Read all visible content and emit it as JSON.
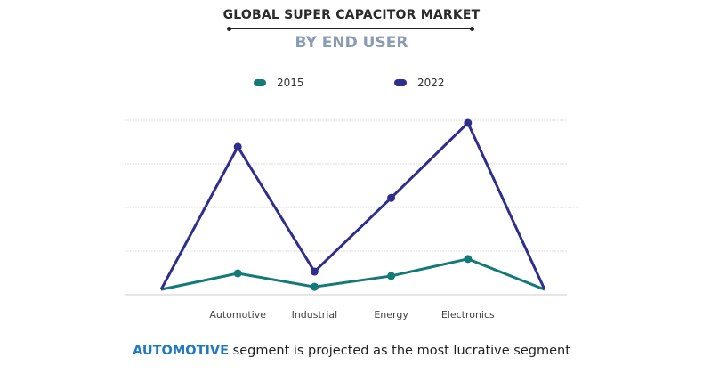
{
  "chart_data": {
    "type": "line",
    "title": "GLOBAL SUPER CAPACITOR MARKET",
    "subtitle": "BY END USER",
    "categories": [
      "",
      "Automotive",
      "Industrial",
      "Energy",
      "Electronics",
      ""
    ],
    "series": [
      {
        "name": "2015",
        "color": "#137a78",
        "values": [
          0.12,
          0.49,
          0.18,
          0.43,
          0.82,
          0.12
        ]
      },
      {
        "name": "2022",
        "color": "#2e2e8c",
        "values": [
          0.12,
          3.39,
          0.53,
          2.22,
          3.94,
          0.12
        ]
      }
    ],
    "ylim": [
      0,
      4
    ],
    "y_ticks_labeled": false,
    "grid": true,
    "legend": "top"
  },
  "caption": {
    "highlight": "AUTOMOTIVE",
    "rest": " segment is projected as the most lucrative segment",
    "highlight_color": "#1f7ac4"
  }
}
